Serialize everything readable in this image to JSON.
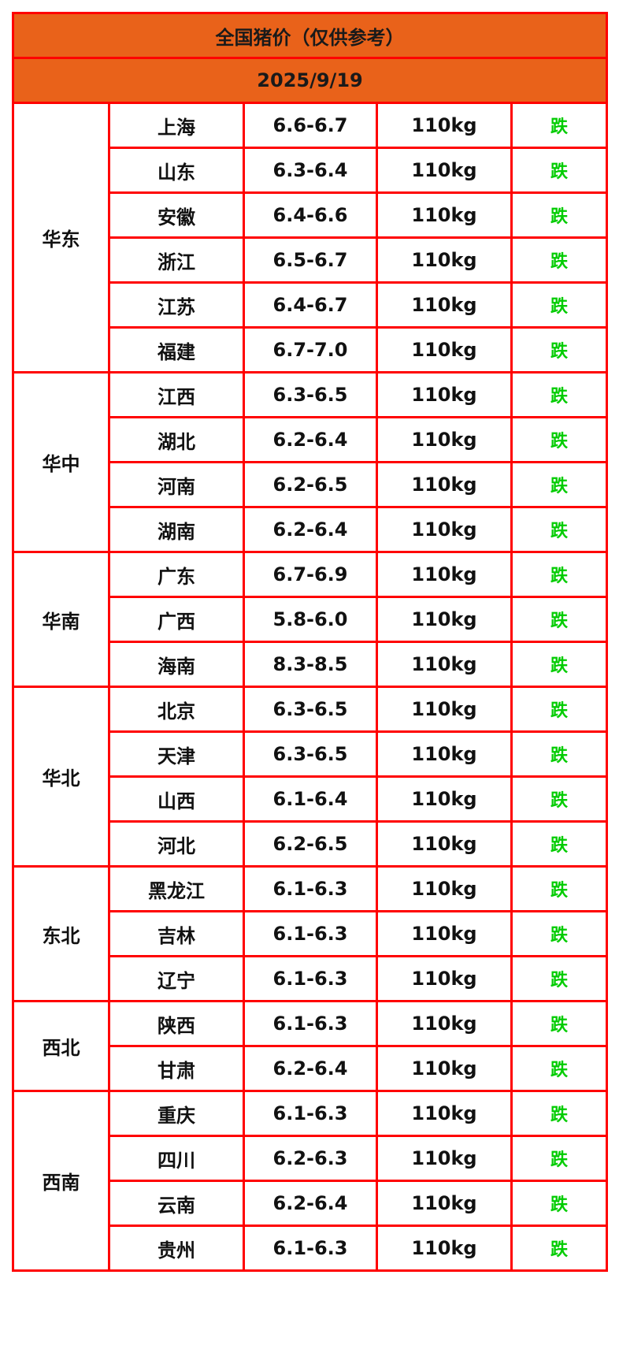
{
  "title": "全国猪价（仅供参考）",
  "date": "2025/9/19",
  "colors": {
    "header_bg": "#e9621a",
    "border": "#ff0000",
    "trend_down": "#00cc00"
  },
  "regions": [
    {
      "name": "华东",
      "rows": [
        {
          "province": "上海",
          "price": "6.6-6.7",
          "weight": "110kg",
          "trend": "跌"
        },
        {
          "province": "山东",
          "price": "6.3-6.4",
          "weight": "110kg",
          "trend": "跌"
        },
        {
          "province": "安徽",
          "price": "6.4-6.6",
          "weight": "110kg",
          "trend": "跌"
        },
        {
          "province": "浙江",
          "price": "6.5-6.7",
          "weight": "110kg",
          "trend": "跌"
        },
        {
          "province": "江苏",
          "price": "6.4-6.7",
          "weight": "110kg",
          "trend": "跌"
        },
        {
          "province": "福建",
          "price": "6.7-7.0",
          "weight": "110kg",
          "trend": "跌"
        }
      ]
    },
    {
      "name": "华中",
      "rows": [
        {
          "province": "江西",
          "price": "6.3-6.5",
          "weight": "110kg",
          "trend": "跌"
        },
        {
          "province": "湖北",
          "price": "6.2-6.4",
          "weight": "110kg",
          "trend": "跌"
        },
        {
          "province": "河南",
          "price": "6.2-6.5",
          "weight": "110kg",
          "trend": "跌"
        },
        {
          "province": "湖南",
          "price": "6.2-6.4",
          "weight": "110kg",
          "trend": "跌"
        }
      ]
    },
    {
      "name": "华南",
      "rows": [
        {
          "province": "广东",
          "price": "6.7-6.9",
          "weight": "110kg",
          "trend": "跌"
        },
        {
          "province": "广西",
          "price": "5.8-6.0",
          "weight": "110kg",
          "trend": "跌"
        },
        {
          "province": "海南",
          "price": "8.3-8.5",
          "weight": "110kg",
          "trend": "跌"
        }
      ]
    },
    {
      "name": "华北",
      "rows": [
        {
          "province": "北京",
          "price": "6.3-6.5",
          "weight": "110kg",
          "trend": "跌"
        },
        {
          "province": "天津",
          "price": "6.3-6.5",
          "weight": "110kg",
          "trend": "跌"
        },
        {
          "province": "山西",
          "price": "6.1-6.4",
          "weight": "110kg",
          "trend": "跌"
        },
        {
          "province": "河北",
          "price": "6.2-6.5",
          "weight": "110kg",
          "trend": "跌"
        }
      ]
    },
    {
      "name": "东北",
      "rows": [
        {
          "province": "黑龙江",
          "price": "6.1-6.3",
          "weight": "110kg",
          "trend": "跌"
        },
        {
          "province": "吉林",
          "price": "6.1-6.3",
          "weight": "110kg",
          "trend": "跌"
        },
        {
          "province": "辽宁",
          "price": "6.1-6.3",
          "weight": "110kg",
          "trend": "跌"
        }
      ]
    },
    {
      "name": "西北",
      "rows": [
        {
          "province": "陕西",
          "price": "6.1-6.3",
          "weight": "110kg",
          "trend": "跌"
        },
        {
          "province": "甘肃",
          "price": "6.2-6.4",
          "weight": "110kg",
          "trend": "跌"
        }
      ]
    },
    {
      "name": "西南",
      "rows": [
        {
          "province": "重庆",
          "price": "6.1-6.3",
          "weight": "110kg",
          "trend": "跌"
        },
        {
          "province": "四川",
          "price": "6.2-6.3",
          "weight": "110kg",
          "trend": "跌"
        },
        {
          "province": "云南",
          "price": "6.2-6.4",
          "weight": "110kg",
          "trend": "跌"
        },
        {
          "province": "贵州",
          "price": "6.1-6.3",
          "weight": "110kg",
          "trend": "跌"
        }
      ]
    }
  ]
}
